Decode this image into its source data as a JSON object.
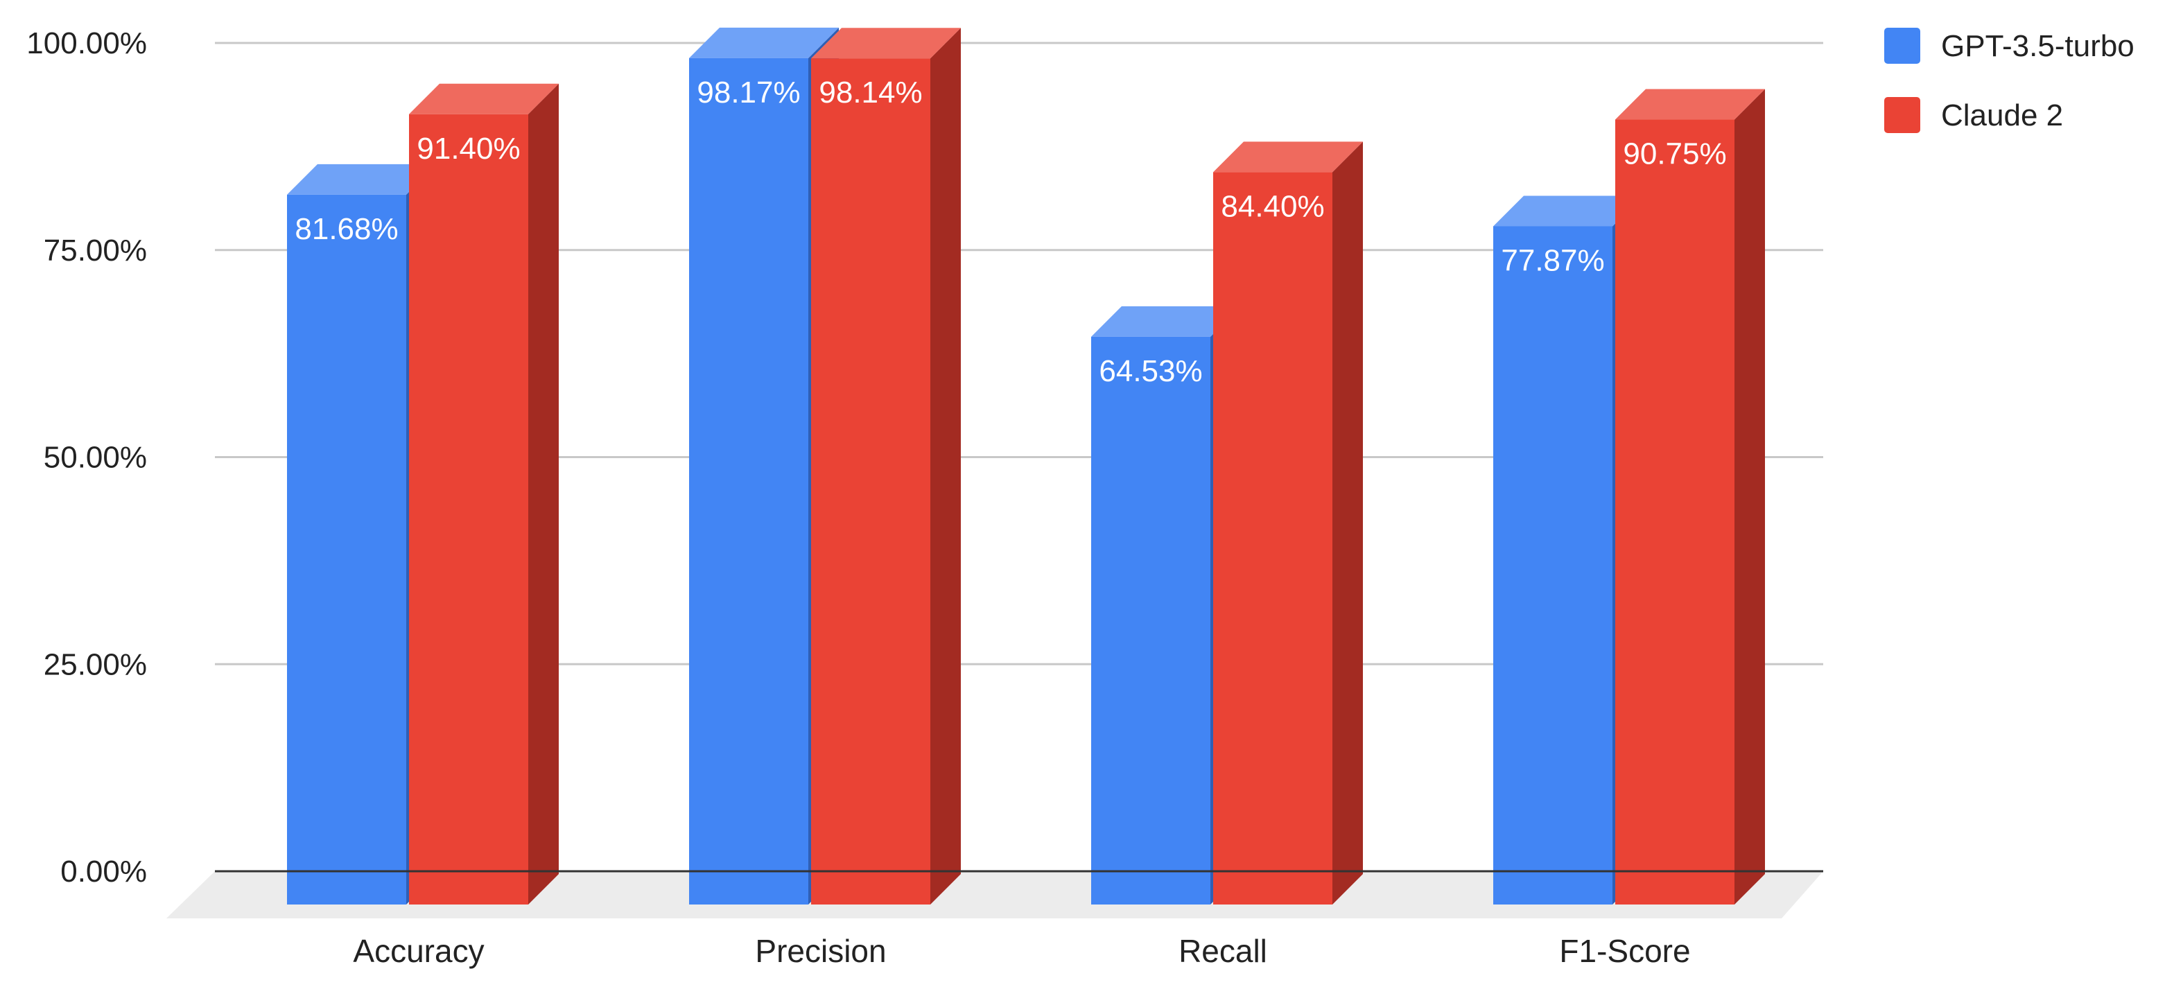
{
  "chart_data": {
    "type": "bar",
    "title": "",
    "xlabel": "",
    "ylabel": "",
    "ylim": [
      0,
      100
    ],
    "yticks": [
      "0.00%",
      "25.00%",
      "50.00%",
      "75.00%",
      "100.00%"
    ],
    "grid": true,
    "legend_position": "top-right",
    "style": "3d",
    "categories": [
      "Accuracy",
      "Precision",
      "Recall",
      "F1-Score"
    ],
    "series": [
      {
        "name": "GPT-3.5-turbo",
        "color": "#4285F4",
        "side_color": "#2F5FB5",
        "top_color": "#6FA2F7",
        "values": [
          81.68,
          98.17,
          64.53,
          77.87
        ],
        "labels": [
          "81.68%",
          "98.17%",
          "64.53%",
          "77.87%"
        ]
      },
      {
        "name": "Claude 2",
        "color": "#EA4335",
        "side_color": "#A32B22",
        "top_color": "#EF6A5E",
        "values": [
          91.4,
          98.14,
          84.4,
          90.75
        ],
        "labels": [
          "91.40%",
          "98.14%",
          "84.40%",
          "90.75%"
        ]
      }
    ]
  }
}
